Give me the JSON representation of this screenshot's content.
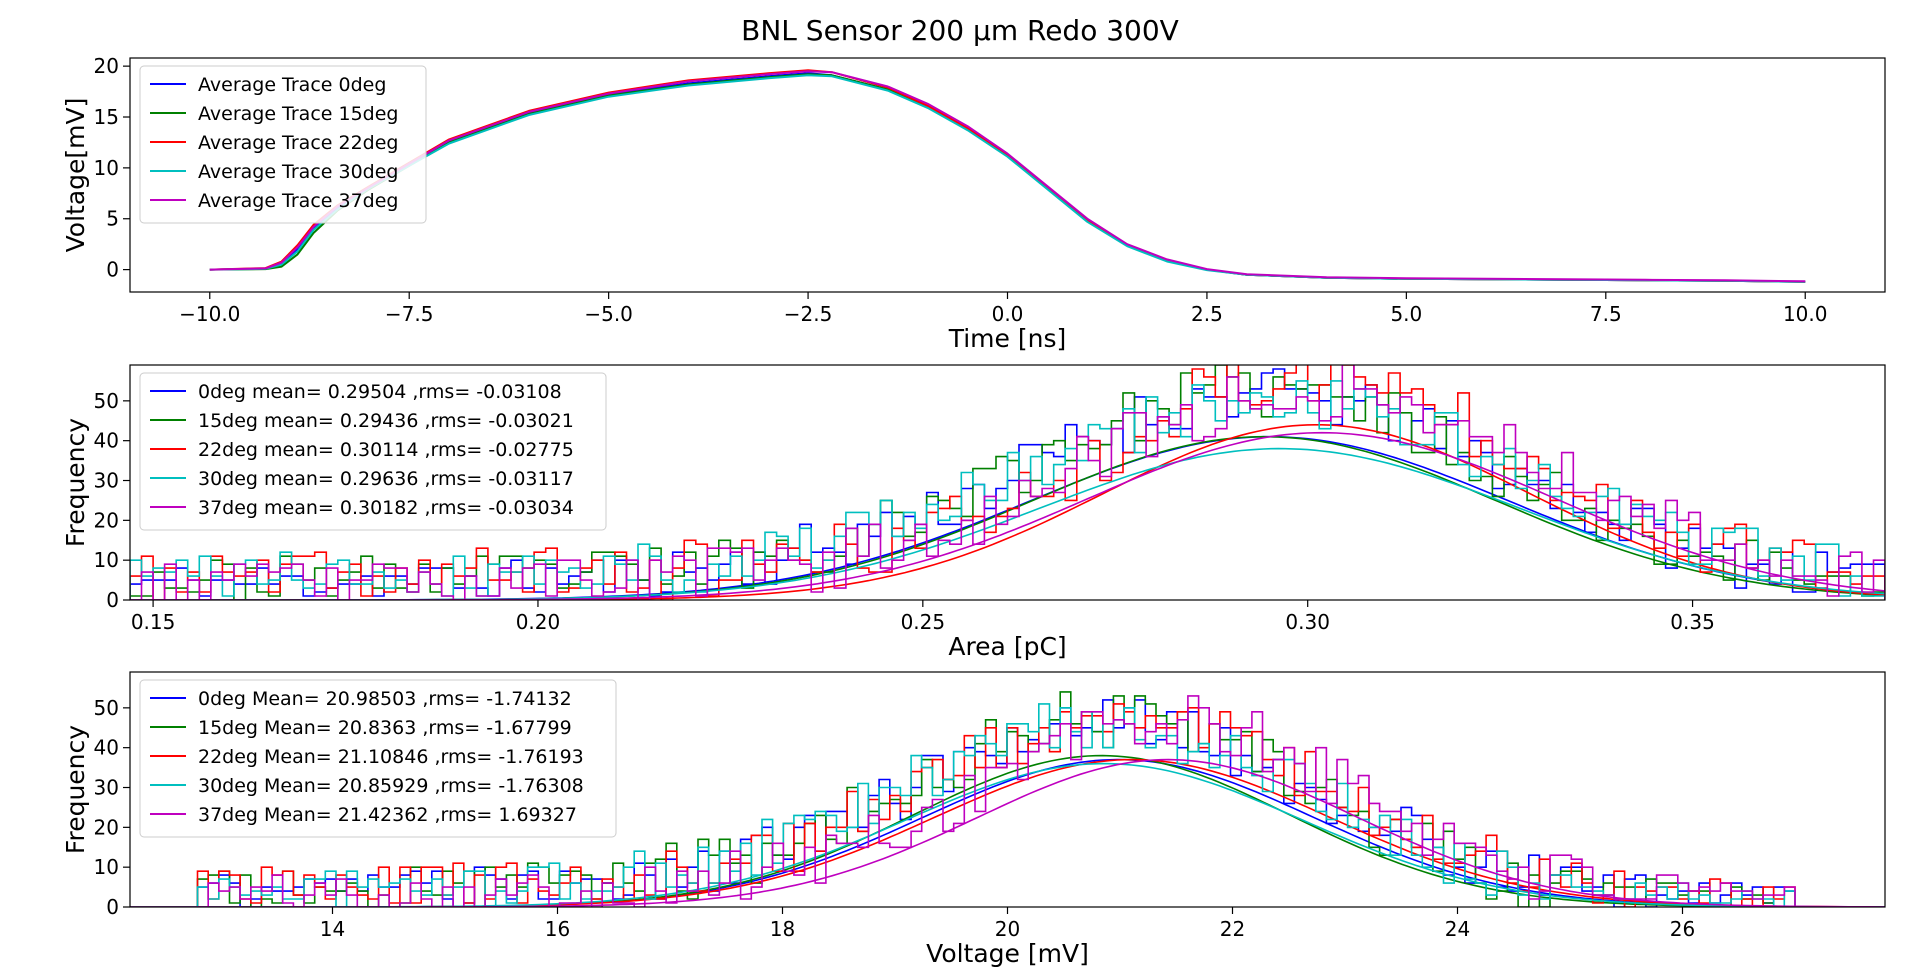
{
  "figure": {
    "title": "BNL Sensor 200 μm Redo 300V"
  },
  "colors": {
    "0deg": "#0000ff",
    "15deg": "#008000",
    "22deg": "#ff0000",
    "30deg": "#00bfbf",
    "37deg": "#bf00bf"
  },
  "chart_data": [
    {
      "type": "line",
      "xlabel": "Time [ns]",
      "ylabel": "Voltage[mV]",
      "xlim": [
        -11,
        11
      ],
      "ylim": [
        -2.2,
        20.8
      ],
      "xticks": [
        "−10.0",
        "−7.5",
        "−5.0",
        "−2.5",
        "0.0",
        "2.5",
        "5.0",
        "7.5",
        "10.0"
      ],
      "xtick_values": [
        -10,
        -7.5,
        -5,
        -2.5,
        0,
        2.5,
        5,
        7.5,
        10
      ],
      "yticks": [
        "0",
        "5",
        "10",
        "15",
        "20"
      ],
      "ytick_values": [
        0,
        5,
        10,
        15,
        20
      ],
      "grid": false,
      "legend_position": "top-left",
      "series": [
        {
          "name": "Average Trace 0deg",
          "color_key": "0deg",
          "x": [
            -10,
            -9.3,
            -9.1,
            -8.9,
            -8.7,
            -8.4,
            -8.0,
            -7.5,
            -7.0,
            -6.0,
            -5.0,
            -4.0,
            -3.0,
            -2.5,
            -2.2,
            -1.5,
            -1.0,
            -0.5,
            0,
            0.5,
            1.0,
            1.5,
            2.0,
            2.5,
            3.0,
            4.0,
            5.0,
            6.0,
            7.0,
            8.0,
            9.0,
            10.0
          ],
          "y": [
            0,
            0.1,
            0.6,
            2.0,
            4.0,
            6.0,
            8.0,
            10.3,
            12.6,
            15.4,
            17.2,
            18.3,
            19.0,
            19.3,
            19.1,
            17.7,
            16.0,
            13.8,
            11.2,
            8.0,
            4.8,
            2.4,
            0.9,
            0.0,
            -0.5,
            -0.8,
            -0.9,
            -0.95,
            -1.0,
            -1.05,
            -1.1,
            -1.2
          ]
        },
        {
          "name": "Average Trace 15deg",
          "color_key": "15deg",
          "x": [
            -10,
            -9.3,
            -9.1,
            -8.9,
            -8.7,
            -8.4,
            -8.0,
            -7.5,
            -7.0,
            -6.0,
            -5.0,
            -4.0,
            -3.0,
            -2.5,
            -2.2,
            -1.5,
            -1.0,
            -0.5,
            0,
            0.5,
            1.0,
            1.5,
            2.0,
            2.5,
            3.0,
            4.0,
            5.0,
            6.0,
            7.0,
            8.0,
            9.0,
            10.0
          ],
          "y": [
            0,
            0.05,
            0.3,
            1.5,
            3.6,
            5.8,
            7.9,
            10.2,
            12.5,
            15.3,
            17.1,
            18.2,
            18.9,
            19.2,
            19.1,
            17.7,
            16.0,
            13.8,
            11.2,
            8.0,
            4.8,
            2.4,
            0.9,
            0.0,
            -0.5,
            -0.8,
            -0.9,
            -0.95,
            -1.0,
            -1.05,
            -1.1,
            -1.2
          ]
        },
        {
          "name": "Average Trace 22deg",
          "color_key": "22deg",
          "x": [
            -10,
            -9.3,
            -9.1,
            -8.9,
            -8.7,
            -8.4,
            -8.0,
            -7.5,
            -7.0,
            -6.0,
            -5.0,
            -4.0,
            -3.0,
            -2.5,
            -2.2,
            -1.5,
            -1.0,
            -0.5,
            0,
            0.5,
            1.0,
            1.5,
            2.0,
            2.5,
            3.0,
            4.0,
            5.0,
            6.0,
            7.0,
            8.0,
            9.0,
            10.0
          ],
          "y": [
            0,
            0.15,
            0.8,
            2.4,
            4.4,
            6.3,
            8.2,
            10.5,
            12.8,
            15.6,
            17.4,
            18.6,
            19.3,
            19.6,
            19.4,
            17.9,
            16.1,
            13.9,
            11.2,
            8.0,
            4.8,
            2.4,
            0.9,
            0.0,
            -0.5,
            -0.8,
            -0.9,
            -0.95,
            -1.0,
            -1.05,
            -1.1,
            -1.2
          ]
        },
        {
          "name": "Average Trace 30deg",
          "color_key": "30deg",
          "x": [
            -10,
            -9.3,
            -9.1,
            -8.9,
            -8.7,
            -8.4,
            -8.0,
            -7.5,
            -7.0,
            -6.0,
            -5.0,
            -4.0,
            -3.0,
            -2.5,
            -2.2,
            -1.5,
            -1.0,
            -0.5,
            0,
            0.5,
            1.0,
            1.5,
            2.0,
            2.5,
            3.0,
            4.0,
            5.0,
            6.0,
            7.0,
            8.0,
            9.0,
            10.0
          ],
          "y": [
            0,
            0.08,
            0.5,
            1.8,
            3.9,
            5.9,
            8.0,
            10.2,
            12.4,
            15.2,
            17.0,
            18.1,
            18.8,
            19.1,
            19.0,
            17.6,
            15.9,
            13.7,
            11.1,
            7.9,
            4.7,
            2.3,
            0.8,
            -0.05,
            -0.5,
            -0.8,
            -0.9,
            -0.95,
            -1.0,
            -1.05,
            -1.1,
            -1.2
          ]
        },
        {
          "name": "Average Trace 37deg",
          "color_key": "37deg",
          "x": [
            -10,
            -9.3,
            -9.1,
            -8.9,
            -8.7,
            -8.4,
            -8.0,
            -7.5,
            -7.0,
            -6.0,
            -5.0,
            -4.0,
            -3.0,
            -2.5,
            -2.2,
            -1.5,
            -1.0,
            -0.5,
            0,
            0.5,
            1.0,
            1.5,
            2.0,
            2.5,
            3.0,
            4.0,
            5.0,
            6.0,
            7.0,
            8.0,
            9.0,
            10.0
          ],
          "y": [
            0,
            0.12,
            0.7,
            2.2,
            4.2,
            6.2,
            8.1,
            10.4,
            12.7,
            15.5,
            17.3,
            18.5,
            19.2,
            19.5,
            19.4,
            18.0,
            16.3,
            14.1,
            11.4,
            8.2,
            5.0,
            2.5,
            1.0,
            0.05,
            -0.45,
            -0.75,
            -0.85,
            -0.9,
            -0.95,
            -1.0,
            -1.05,
            -1.15
          ]
        }
      ]
    },
    {
      "type": "histogram",
      "xlabel": "Area [pC]",
      "ylabel": "Frequency",
      "xlim": [
        0.147,
        0.375
      ],
      "ylim": [
        0,
        59
      ],
      "xticks": [
        "0.15",
        "0.20",
        "0.25",
        "0.30",
        "0.35"
      ],
      "xtick_values": [
        0.15,
        0.2,
        0.25,
        0.3,
        0.35
      ],
      "yticks": [
        "0",
        "10",
        "20",
        "30",
        "40",
        "50"
      ],
      "ytick_values": [
        0,
        10,
        20,
        30,
        40,
        50
      ],
      "grid": false,
      "legend_position": "top-left",
      "hist_range": [
        0.147,
        0.375
      ],
      "bin_count": 152,
      "series": [
        {
          "name": "0deg mean= 0.29504 ,rms= -0.03108",
          "color_key": "0deg",
          "fit_mean": 0.29504,
          "fit_sigma": 0.03108,
          "peak": 41,
          "bg_level": 5,
          "bg_spread": 0.055,
          "jitter": 7,
          "seed": 11
        },
        {
          "name": "15deg mean= 0.29436 ,rms= -0.03021",
          "color_key": "15deg",
          "fit_mean": 0.29436,
          "fit_sigma": 0.03021,
          "peak": 41,
          "bg_level": 6,
          "bg_spread": 0.055,
          "jitter": 7,
          "seed": 23
        },
        {
          "name": "22deg mean= 0.30114 ,rms= -0.02775",
          "color_key": "22deg",
          "fit_mean": 0.30114,
          "fit_sigma": 0.02775,
          "peak": 44,
          "bg_level": 7,
          "bg_spread": 0.05,
          "jitter": 8,
          "seed": 37
        },
        {
          "name": "30deg mean= 0.29636 ,rms= -0.03117",
          "color_key": "30deg",
          "fit_mean": 0.29636,
          "fit_sigma": 0.03117,
          "peak": 38,
          "bg_level": 7,
          "bg_spread": 0.06,
          "jitter": 7,
          "seed": 41
        },
        {
          "name": "37deg mean= 0.30182 ,rms= -0.03034",
          "color_key": "37deg",
          "fit_mean": 0.30182,
          "fit_sigma": 0.03034,
          "peak": 42,
          "bg_level": 5,
          "bg_spread": 0.055,
          "jitter": 8,
          "seed": 53
        }
      ]
    },
    {
      "type": "histogram",
      "xlabel": "Voltage [mV]",
      "ylabel": "Frequency",
      "xlim": [
        12.2,
        27.8
      ],
      "ylim": [
        0,
        59
      ],
      "xticks": [
        "14",
        "16",
        "18",
        "20",
        "22",
        "24",
        "26"
      ],
      "xtick_values": [
        14,
        16,
        18,
        20,
        22,
        24,
        26
      ],
      "yticks": [
        "0",
        "10",
        "20",
        "30",
        "40",
        "50"
      ],
      "ytick_values": [
        0,
        10,
        20,
        30,
        40,
        50
      ],
      "grid": false,
      "legend_position": "top-left",
      "hist_range": [
        12.8,
        27.0
      ],
      "bin_count": 150,
      "series": [
        {
          "name": "0deg Mean= 20.98503 ,rms= -1.74132",
          "color_key": "0deg",
          "fit_mean": 20.98503,
          "fit_sigma": 1.74132,
          "peak": 37,
          "bg_level": 5,
          "bg_spread": 3.0,
          "jitter": 7,
          "seed": 61
        },
        {
          "name": "15deg Mean= 20.8363 ,rms= -1.67799",
          "color_key": "15deg",
          "fit_mean": 20.8363,
          "fit_sigma": 1.67799,
          "peak": 38,
          "bg_level": 5,
          "bg_spread": 3.0,
          "jitter": 8,
          "seed": 73
        },
        {
          "name": "22deg Mean= 21.10846 ,rms= -1.76193",
          "color_key": "22deg",
          "fit_mean": 21.10846,
          "fit_sigma": 1.76193,
          "peak": 37,
          "bg_level": 6,
          "bg_spread": 3.0,
          "jitter": 7,
          "seed": 89
        },
        {
          "name": "30deg Mean= 20.85929 ,rms= -1.76308",
          "color_key": "30deg",
          "fit_mean": 20.85929,
          "fit_sigma": 1.76308,
          "peak": 36,
          "bg_level": 5,
          "bg_spread": 3.0,
          "jitter": 7,
          "seed": 97
        },
        {
          "name": "37deg Mean= 21.42362 ,rms= 1.69327",
          "color_key": "37deg",
          "fit_mean": 21.42362,
          "fit_sigma": 1.69327,
          "peak": 37,
          "bg_level": 4,
          "bg_spread": 3.0,
          "jitter": 8,
          "seed": 101
        }
      ]
    }
  ]
}
